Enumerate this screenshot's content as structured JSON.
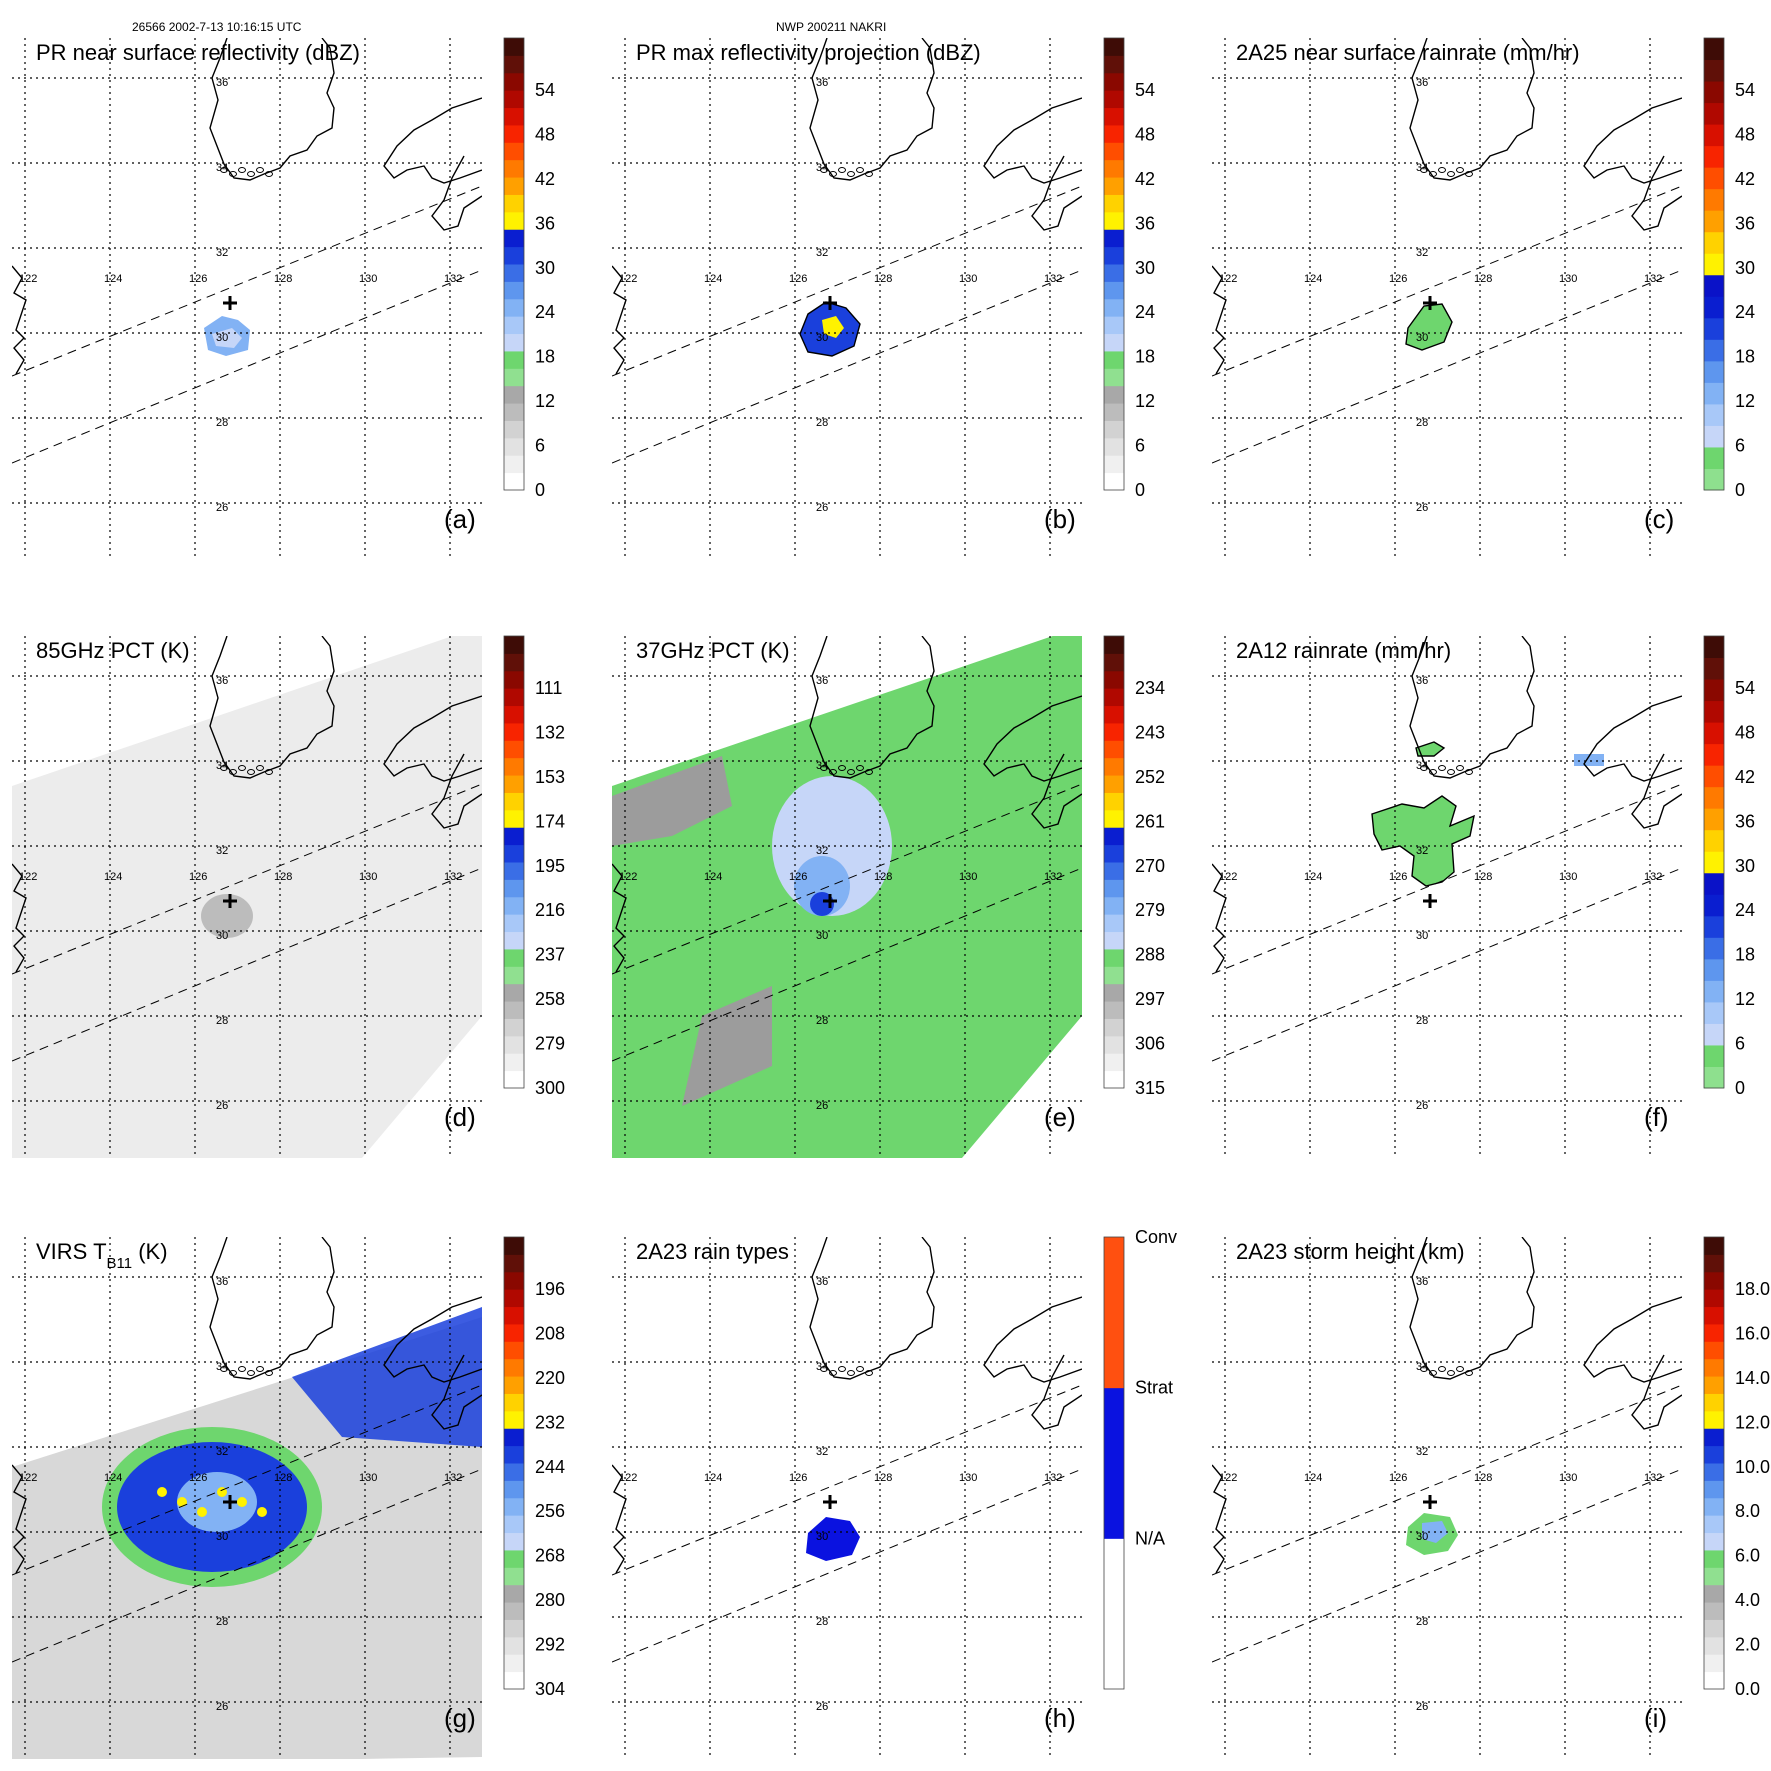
{
  "header": {
    "left": "26566 2002-7-13 10:16:15 UTC",
    "center": "NWP 200211 NAKRI"
  },
  "map": {
    "lon_labels": [
      "122",
      "124",
      "126",
      "128",
      "130",
      "132"
    ],
    "lat_labels": [
      "36",
      "34",
      "32",
      "30",
      "28",
      "26"
    ]
  },
  "panels": [
    {
      "id": "a",
      "title": "PR near surface reflectivity (dBZ)",
      "label": "(a)",
      "colorbar": {
        "ticks": [
          "54",
          "48",
          "42",
          "36",
          "30",
          "24",
          "18",
          "12",
          "6",
          "0"
        ],
        "colors": [
          "#ffffff",
          "#f0f0f0",
          "#e2e2e2",
          "#d2d2d2",
          "#bcbcbc",
          "#a8a8a8",
          "#90e090",
          "#6ed66e",
          "#c6d6f8",
          "#a8c8f8",
          "#82b2f4",
          "#5e96ee",
          "#3a6ee6",
          "#1a40dc",
          "#0a1ed0",
          "#fff200",
          "#ffd200",
          "#ffa000",
          "#ff7a00",
          "#ff4e00",
          "#f82400",
          "#d81000",
          "#b00800",
          "#8a0800",
          "#601008",
          "#3e0c06"
        ]
      }
    },
    {
      "id": "b",
      "title": "PR max reflectivity projection (dBZ)",
      "label": "(b)",
      "colorbar": {
        "ticks": [
          "54",
          "48",
          "42",
          "36",
          "30",
          "24",
          "18",
          "12",
          "6",
          "0"
        ],
        "colors": [
          "#ffffff",
          "#f0f0f0",
          "#e2e2e2",
          "#d2d2d2",
          "#bcbcbc",
          "#a8a8a8",
          "#90e090",
          "#6ed66e",
          "#c6d6f8",
          "#a8c8f8",
          "#82b2f4",
          "#5e96ee",
          "#3a6ee6",
          "#1a40dc",
          "#0a1ed0",
          "#fff200",
          "#ffd200",
          "#ffa000",
          "#ff7a00",
          "#ff4e00",
          "#f82400",
          "#d81000",
          "#b00800",
          "#8a0800",
          "#601008",
          "#3e0c06"
        ]
      }
    },
    {
      "id": "c",
      "title": "2A25 near surface rainrate (mm/hr)",
      "label": "(c)",
      "colorbar": {
        "ticks": [
          "54",
          "48",
          "42",
          "36",
          "30",
          "24",
          "18",
          "12",
          "6",
          "0"
        ],
        "colors": [
          "#8ee08e",
          "#6ed66e",
          "#c6d6f8",
          "#a8c8f8",
          "#82b2f4",
          "#5e96ee",
          "#3a6ee6",
          "#1a40dc",
          "#0a1ed0",
          "#0a12c8",
          "#fff200",
          "#ffd200",
          "#ffa000",
          "#ff7a00",
          "#ff4e00",
          "#f82400",
          "#d81000",
          "#b00800",
          "#8a0800",
          "#601008",
          "#3e0c06"
        ]
      }
    },
    {
      "id": "d",
      "title": "85GHz PCT (K)",
      "label": "(d)",
      "colorbar": {
        "ticks": [
          "111",
          "132",
          "153",
          "174",
          "195",
          "216",
          "237",
          "258",
          "279",
          "300"
        ],
        "colors": [
          "#ffffff",
          "#f0f0f0",
          "#e2e2e2",
          "#d2d2d2",
          "#bcbcbc",
          "#a8a8a8",
          "#90e090",
          "#6ed66e",
          "#c6d6f8",
          "#a8c8f8",
          "#82b2f4",
          "#5e96ee",
          "#3a6ee6",
          "#1a40dc",
          "#0a1ed0",
          "#fff200",
          "#ffd200",
          "#ffa000",
          "#ff7a00",
          "#ff4e00",
          "#f82400",
          "#d81000",
          "#b00800",
          "#8a0800",
          "#601008",
          "#3e0c06"
        ]
      }
    },
    {
      "id": "e",
      "title": "37GHz PCT (K)",
      "label": "(e)",
      "colorbar": {
        "ticks": [
          "234",
          "243",
          "252",
          "261",
          "270",
          "279",
          "288",
          "297",
          "306",
          "315"
        ],
        "colors": [
          "#ffffff",
          "#f0f0f0",
          "#e2e2e2",
          "#d2d2d2",
          "#bcbcbc",
          "#a8a8a8",
          "#90e090",
          "#6ed66e",
          "#c6d6f8",
          "#a8c8f8",
          "#82b2f4",
          "#5e96ee",
          "#3a6ee6",
          "#1a40dc",
          "#0a1ed0",
          "#fff200",
          "#ffd200",
          "#ffa000",
          "#ff7a00",
          "#ff4e00",
          "#f82400",
          "#d81000",
          "#b00800",
          "#8a0800",
          "#601008",
          "#3e0c06"
        ]
      }
    },
    {
      "id": "f",
      "title": "2A12 rainrate (mm/hr)",
      "label": "(f)",
      "colorbar": {
        "ticks": [
          "54",
          "48",
          "42",
          "36",
          "30",
          "24",
          "18",
          "12",
          "6",
          "0"
        ],
        "colors": [
          "#8ee08e",
          "#6ed66e",
          "#c6d6f8",
          "#a8c8f8",
          "#82b2f4",
          "#5e96ee",
          "#3a6ee6",
          "#1a40dc",
          "#0a1ed0",
          "#0a12c8",
          "#fff200",
          "#ffd200",
          "#ffa000",
          "#ff7a00",
          "#ff4e00",
          "#f82400",
          "#d81000",
          "#b00800",
          "#8a0800",
          "#601008",
          "#3e0c06"
        ]
      }
    },
    {
      "id": "g",
      "title": "VIRS T",
      "title_sub": "B11",
      "title_suffix": " (K)",
      "label": "(g)",
      "colorbar": {
        "ticks": [
          "196",
          "208",
          "220",
          "232",
          "244",
          "256",
          "268",
          "280",
          "292",
          "304"
        ],
        "colors": [
          "#ffffff",
          "#f0f0f0",
          "#e2e2e2",
          "#d2d2d2",
          "#bcbcbc",
          "#a8a8a8",
          "#90e090",
          "#6ed66e",
          "#c6d6f8",
          "#a8c8f8",
          "#82b2f4",
          "#5e96ee",
          "#3a6ee6",
          "#1a40dc",
          "#0a1ed0",
          "#fff200",
          "#ffd200",
          "#ffa000",
          "#ff7a00",
          "#ff4e00",
          "#f82400",
          "#d81000",
          "#b00800",
          "#8a0800",
          "#601008",
          "#3e0c06"
        ]
      }
    },
    {
      "id": "h",
      "title": "2A23 rain types",
      "label": "(h)",
      "colorbar": {
        "ticks": [
          "Conv",
          "Strat",
          "N/A"
        ],
        "colors": [
          "#ffffff",
          "#0a12e0",
          "#ff5010"
        ]
      }
    },
    {
      "id": "i",
      "title": "2A23 storm height (km)",
      "label": "(i)",
      "colorbar": {
        "ticks": [
          "18.0",
          "16.0",
          "14.0",
          "12.0",
          "10.0",
          "8.0",
          "6.0",
          "4.0",
          "2.0",
          "0.0"
        ],
        "colors": [
          "#ffffff",
          "#f0f0f0",
          "#e2e2e2",
          "#d2d2d2",
          "#bcbcbc",
          "#a8a8a8",
          "#90e090",
          "#6ed66e",
          "#c6d6f8",
          "#a8c8f8",
          "#82b2f4",
          "#5e96ee",
          "#3a6ee6",
          "#1a40dc",
          "#0a1ed0",
          "#fff200",
          "#ffd200",
          "#ffa000",
          "#ff7a00",
          "#ff4e00",
          "#f82400",
          "#d81000",
          "#b00800",
          "#8a0800",
          "#601008",
          "#3e0c06"
        ]
      }
    }
  ],
  "colors": {
    "coast": "#000000",
    "grid": "#000000",
    "swath_gray": "#ececec",
    "green": "#6ed66e",
    "dark_gray": "#9c9c9c",
    "light_blue": "#c6d6f8",
    "mid_blue": "#82b2f4",
    "blue": "#1a40dc",
    "yellow": "#fff200"
  }
}
